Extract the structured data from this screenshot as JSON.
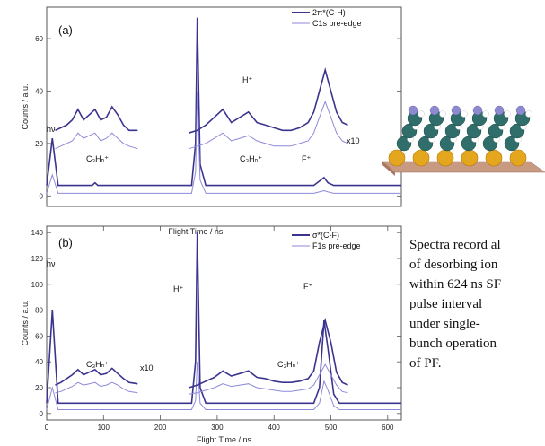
{
  "colors": {
    "dark": "#3a348f",
    "light": "#8d89d9",
    "axis": "#555555",
    "tick": "#777777"
  },
  "caption": "Spectra record al\nof desorbing ion\nwithin 624 ns SF\npulse interval\nunder single-\nbunch operation\nof PF.",
  "chart_data": [
    {
      "type": "line",
      "panel_label": "(a)",
      "xlabel": "",
      "ylabel": "Counts / a.u.",
      "xlim": [
        0,
        624
      ],
      "ylim": [
        -4,
        72
      ],
      "x_ticks": [],
      "y_ticks": [
        0,
        20,
        40,
        60
      ],
      "legend": [
        "2π*(C-H)",
        "C1s pre-edge"
      ],
      "series": [
        {
          "name": "2π*(C-H)",
          "x": [
            0,
            10,
            20,
            80,
            85,
            90,
            255,
            262,
            265,
            270,
            280,
            470,
            488,
            495,
            505,
            624
          ],
          "y": [
            4,
            22,
            4,
            4,
            5,
            4,
            4,
            20,
            68,
            12,
            4,
            4,
            7,
            5,
            4,
            4
          ]
        },
        {
          "name": "C1s pre-edge",
          "x": [
            0,
            10,
            20,
            255,
            262,
            265,
            270,
            280,
            470,
            488,
            495,
            505,
            624
          ],
          "y": [
            1,
            8,
            1,
            1,
            9,
            40,
            6,
            1,
            1,
            2,
            1.5,
            1,
            1
          ]
        }
      ],
      "insets": [
        {
          "scale_label": "x10",
          "x": [
            15,
            25,
            35,
            45,
            55,
            65,
            75,
            85,
            95,
            105,
            115,
            125,
            135,
            145,
            160
          ],
          "y_dark": [
            25,
            26,
            27,
            29,
            33,
            29,
            31,
            33,
            29,
            30,
            34,
            31,
            27,
            25,
            25
          ],
          "y_light": [
            18,
            19,
            20,
            21,
            24,
            22,
            23,
            24,
            21,
            22,
            24,
            22,
            20,
            19,
            18
          ]
        },
        {
          "scale_label": "x10",
          "x": [
            250,
            265,
            280,
            295,
            310,
            325,
            340,
            355,
            370,
            385,
            400,
            415,
            430,
            445,
            460,
            470,
            480,
            490,
            500,
            510,
            520,
            530
          ],
          "y_dark": [
            24,
            25,
            27,
            30,
            33,
            28,
            30,
            32,
            28,
            27,
            26,
            25,
            25,
            26,
            28,
            32,
            40,
            48,
            40,
            32,
            28,
            27
          ],
          "y_light": [
            18,
            19,
            20,
            22,
            24,
            21,
            22,
            23,
            21,
            20,
            19,
            19,
            19,
            20,
            21,
            24,
            30,
            36,
            30,
            24,
            21,
            20
          ]
        }
      ],
      "annotations": [
        "hν",
        "C₃Hₙ⁺",
        "H⁺",
        "C₃Hₙ⁺",
        "F⁺",
        "x10"
      ]
    },
    {
      "type": "line",
      "panel_label": "(b)",
      "xlabel": "Flight Time / ns",
      "top_xlabel": "Flight Time / ns",
      "ylabel": "Counts / a.u.",
      "xlim": [
        0,
        624
      ],
      "ylim": [
        -5,
        145
      ],
      "x_ticks": [
        0,
        100,
        200,
        300,
        400,
        500,
        600
      ],
      "y_ticks": [
        0,
        20,
        40,
        60,
        80,
        100,
        120,
        140
      ],
      "legend": [
        "σ*(C-F)",
        "F1s pre-edge"
      ],
      "series": [
        {
          "name": "σ*(C-F)",
          "x": [
            0,
            10,
            20,
            255,
            262,
            265,
            270,
            280,
            470,
            480,
            488,
            495,
            505,
            515,
            624
          ],
          "y": [
            8,
            80,
            8,
            8,
            40,
            140,
            20,
            8,
            8,
            20,
            72,
            50,
            15,
            8,
            8
          ]
        },
        {
          "name": "F1s pre-edge",
          "x": [
            0,
            10,
            20,
            255,
            262,
            265,
            270,
            280,
            470,
            480,
            488,
            495,
            505,
            515,
            624
          ],
          "y": [
            3,
            20,
            3,
            3,
            10,
            40,
            8,
            3,
            3,
            8,
            25,
            18,
            6,
            3,
            3
          ]
        }
      ],
      "insets": [
        {
          "scale_label": "x10",
          "x": [
            15,
            25,
            35,
            45,
            55,
            65,
            75,
            85,
            95,
            105,
            115,
            125,
            135,
            145,
            160
          ],
          "y_dark": [
            22,
            24,
            27,
            30,
            34,
            30,
            32,
            34,
            30,
            31,
            35,
            31,
            27,
            24,
            23
          ],
          "y_light": [
            16,
            17,
            19,
            21,
            24,
            22,
            23,
            24,
            21,
            22,
            24,
            22,
            19,
            17,
            16
          ]
        },
        {
          "scale_label": "",
          "x": [
            250,
            265,
            280,
            295,
            310,
            325,
            340,
            355,
            370,
            385,
            400,
            415,
            430,
            445,
            460,
            470,
            480,
            490,
            500,
            510,
            520,
            530
          ],
          "y_dark": [
            20,
            22,
            25,
            28,
            33,
            29,
            31,
            33,
            28,
            27,
            25,
            24,
            24,
            25,
            27,
            33,
            55,
            72,
            55,
            32,
            24,
            22
          ],
          "y_light": [
            15,
            16,
            18,
            20,
            23,
            21,
            22,
            23,
            20,
            19,
            18,
            17,
            17,
            18,
            19,
            22,
            30,
            38,
            30,
            22,
            17,
            16
          ]
        }
      ],
      "annotations": [
        "hν",
        "C₃Hₙ⁺",
        "H⁺",
        "C₃Hₙ⁺",
        "F⁺",
        "x10"
      ]
    }
  ]
}
